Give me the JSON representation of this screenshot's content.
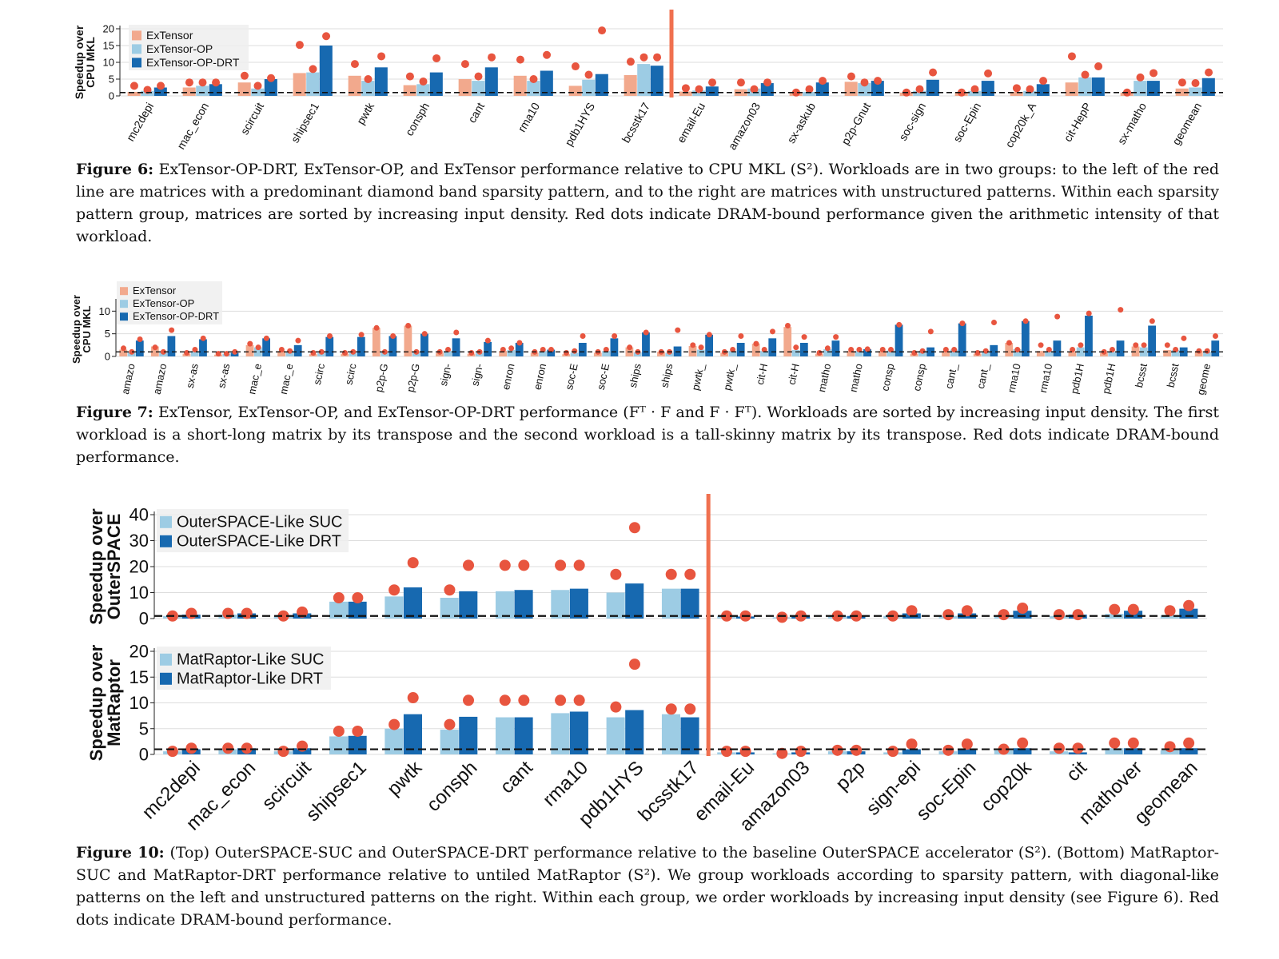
{
  "chart_data": [
    {
      "type": "bar",
      "ylabel": "Speedup over CPU MKL",
      "ylim": [
        0,
        20
      ],
      "yticks": [
        0,
        5,
        10,
        15,
        20
      ],
      "categories": [
        "mc2depi",
        "mac_econ",
        "scircuit",
        "shipsec1",
        "pwtk",
        "consph",
        "cant",
        "rma10",
        "pdb1HYS",
        "bcsstk17",
        "email-Eu",
        "amazon03",
        "sx-askub",
        "p2p-Gnut",
        "soc-sign",
        "soc-Epin",
        "cop20k_A",
        "cit-HepP",
        "sx-matho",
        "geomean"
      ],
      "divider_after": 10,
      "legend_position": "top-left",
      "series": [
        {
          "name": "ExTensor",
          "color": "#f2a98d",
          "values": [
            1.2,
            2.5,
            4,
            6.8,
            6,
            3.2,
            5,
            6,
            3,
            6.2,
            1.3,
            2,
            0.8,
            4.2,
            1,
            1,
            1.2,
            4,
            1,
            2.2
          ]
        },
        {
          "name": "ExTensor-OP",
          "color": "#9dcce4",
          "values": [
            1.5,
            3,
            2.2,
            7,
            4.5,
            3.5,
            4.5,
            4.5,
            4.8,
            9.5,
            1.6,
            2.2,
            1.2,
            3.8,
            1.5,
            1.5,
            1.5,
            5.5,
            4.5,
            2.5
          ]
        },
        {
          "name": "ExTensor-OP-DRT",
          "color": "#1769b0",
          "values": [
            2.5,
            3.5,
            5,
            15,
            8.5,
            7,
            8.5,
            7.5,
            6.5,
            9,
            2.8,
            3.8,
            4,
            4.5,
            4.8,
            4.5,
            3.5,
            5.5,
            4.5,
            5.3
          ]
        }
      ],
      "dram_bound": [
        [
          3,
          1.8,
          3
        ],
        [
          4,
          4,
          4
        ],
        [
          6,
          3,
          5.3
        ],
        [
          15.2,
          8,
          17.8
        ],
        [
          9.5,
          5,
          11.8
        ],
        [
          5.8,
          4.3,
          11.2
        ],
        [
          9.5,
          5.8,
          11.5
        ],
        [
          10.8,
          5,
          12.2
        ],
        [
          8.8,
          6.3,
          19.5
        ],
        [
          10.2,
          11.5,
          11.5
        ],
        [
          2.3,
          2,
          4
        ],
        [
          4,
          2,
          4
        ],
        [
          1,
          2,
          4.5
        ],
        [
          5.8,
          4,
          4.5
        ],
        [
          1,
          2,
          7
        ],
        [
          1,
          2,
          6.7
        ],
        [
          2.3,
          2,
          4.5
        ],
        [
          11.8,
          6.3,
          8.8
        ],
        [
          1,
          5.5,
          6.8
        ],
        [
          4,
          3.8,
          7
        ]
      ]
    },
    {
      "type": "bar",
      "ylabel": "Speedup over CPU MKL",
      "ylim": [
        0,
        12
      ],
      "yticks": [
        0,
        5,
        10
      ],
      "categories": [
        "amazo",
        "amazo",
        "sx-as",
        "sx-as",
        "mac_e",
        "mac_e",
        "scirc",
        "scirc",
        "p2p-G",
        "p2p-G",
        "sign-",
        "sign-",
        "enron",
        "enron",
        "soc-E",
        "soc-E",
        "ships",
        "ships",
        "pwtk_",
        "pwtk_",
        "cit-H",
        "cit-H",
        "matho",
        "matho",
        "consp",
        "consp",
        "cant_",
        "cant_",
        "rma10",
        "rma10",
        "pdb1H",
        "pdb1H",
        "bcsst",
        "bcsst",
        "geome"
      ],
      "legend_position": "top-left",
      "series": [
        {
          "name": "ExTensor",
          "color": "#f2a98d",
          "values": [
            1.5,
            2.2,
            0.6,
            0.4,
            2.5,
            1.2,
            0.5,
            0.6,
            6.3,
            6.8,
            0.8,
            0.6,
            1.2,
            0.8,
            0.5,
            0.8,
            2,
            1,
            2.3,
            0.8,
            2.8,
            6.5,
            0.6,
            1.2,
            1.2,
            0.6,
            1.2,
            0.6,
            3,
            1.2,
            1,
            0.8,
            2.2,
            1.4,
            1.2
          ]
        },
        {
          "name": "ExTensor-OP",
          "color": "#9dcce4",
          "values": [
            0.9,
            0.8,
            1.2,
            0.6,
            2,
            1,
            0.8,
            0.8,
            0.9,
            1,
            1.2,
            0.8,
            1.4,
            1.2,
            0.8,
            1.2,
            0.9,
            0.8,
            1.5,
            1.2,
            1.2,
            1.4,
            1.6,
            1.2,
            1.3,
            1.2,
            1.5,
            1.1,
            1.6,
            1.2,
            2,
            1,
            2,
            1.4,
            1
          ]
        },
        {
          "name": "ExTensor-OP-DRT",
          "color": "#1769b0",
          "values": [
            3.5,
            4.5,
            3.8,
            0.8,
            4,
            2.5,
            4.3,
            4.3,
            4.5,
            5,
            4,
            3.2,
            3,
            1.5,
            3,
            4,
            5.3,
            2.2,
            4.8,
            3,
            4,
            3,
            3.5,
            1.6,
            7,
            2,
            7.3,
            2.5,
            7.8,
            3.5,
            9,
            3.5,
            6.8,
            2,
            3.5
          ]
        }
      ],
      "dram_bound": [
        [
          1.8,
          1,
          3.8
        ],
        [
          2,
          1,
          5.8
        ],
        [
          0.8,
          1.5,
          4
        ],
        [
          0.6,
          0.6,
          1
        ],
        [
          2.8,
          2,
          4
        ],
        [
          1.5,
          1.2,
          3.5
        ],
        [
          0.8,
          1,
          4.5
        ],
        [
          0.8,
          1,
          4.8
        ],
        [
          6.3,
          1,
          4.5
        ],
        [
          6.8,
          1,
          5
        ],
        [
          1,
          1.5,
          5.3
        ],
        [
          0.8,
          1,
          3.5
        ],
        [
          1.5,
          1.8,
          3
        ],
        [
          1,
          1.5,
          1.5
        ],
        [
          0.8,
          1.2,
          4.5
        ],
        [
          1,
          1.5,
          4.5
        ],
        [
          2,
          1,
          5.3
        ],
        [
          1,
          1,
          5.8
        ],
        [
          2.5,
          2,
          4.8
        ],
        [
          1,
          1.5,
          4.5
        ],
        [
          2.8,
          1.5,
          5.5
        ],
        [
          6.8,
          2,
          4.3
        ],
        [
          0.8,
          1.8,
          4.3
        ],
        [
          1.5,
          1.5,
          1.6
        ],
        [
          1.5,
          1.5,
          7
        ],
        [
          0.8,
          1.2,
          5.5
        ],
        [
          1.5,
          1.5,
          7.3
        ],
        [
          0.8,
          1.2,
          7.5
        ],
        [
          3,
          1.5,
          7.8
        ],
        [
          2.5,
          1.5,
          8.8
        ],
        [
          1.5,
          2.5,
          9.5
        ],
        [
          1,
          1.5,
          10.3
        ],
        [
          2.5,
          2.5,
          7.8
        ],
        [
          2.5,
          1.5,
          4
        ],
        [
          1.2,
          1.2,
          4.5
        ]
      ]
    },
    {
      "type": "bar",
      "ylabel": "Speedup over OuterSPACE",
      "ylim": [
        0,
        40
      ],
      "yticks": [
        0,
        10,
        20,
        30,
        40
      ],
      "categories": [
        "mc2depi",
        "mac_econ",
        "scircuit",
        "shipsec1",
        "pwtk",
        "consph",
        "cant",
        "rma10",
        "pdb1HYS",
        "bcsstk17",
        "email-Eu",
        "amazon03",
        "p2p",
        "sign-epi",
        "soc-Epin",
        "cop20k",
        "cit",
        "mathover",
        "geomean"
      ],
      "divider_after": 10,
      "legend_position": "top-left",
      "series": [
        {
          "name": "OuterSPACE-Like SUC",
          "color": "#9dcce4",
          "values": [
            1,
            1.5,
            1,
            6.5,
            8.5,
            8,
            10.5,
            11,
            10,
            11.5,
            1,
            0.5,
            1,
            1,
            1,
            1.2,
            1,
            1.8,
            1.2
          ]
        },
        {
          "name": "OuterSPACE-Like DRT",
          "color": "#1769b0",
          "values": [
            1.5,
            2,
            2,
            6.5,
            12,
            10.5,
            11,
            11.5,
            13.5,
            11.5,
            0.8,
            0.8,
            1,
            2,
            2,
            3,
            1.5,
            3,
            3.8
          ]
        }
      ],
      "dram_bound": [
        [
          1,
          2
        ],
        [
          2,
          2
        ],
        [
          1,
          2.5
        ],
        [
          8,
          8
        ],
        [
          11,
          21.5
        ],
        [
          11,
          20.5
        ],
        [
          20.5,
          20.5
        ],
        [
          20.5,
          20.5
        ],
        [
          17,
          35
        ],
        [
          17,
          17
        ],
        [
          1,
          1
        ],
        [
          0.5,
          1
        ],
        [
          1,
          1
        ],
        [
          1,
          3
        ],
        [
          1.5,
          3
        ],
        [
          1.5,
          4
        ],
        [
          1.5,
          1.5
        ],
        [
          3.5,
          3.5
        ],
        [
          3,
          5
        ]
      ]
    },
    {
      "type": "bar",
      "ylabel": "Speedup over MatRaptor",
      "ylim": [
        0,
        20
      ],
      "yticks": [
        0,
        5,
        10,
        15,
        20
      ],
      "categories": [
        "mc2depi",
        "mac_econ",
        "scircuit",
        "shipsec1",
        "pwtk",
        "consph",
        "cant",
        "rma10",
        "pdb1HYS",
        "bcsstk17",
        "email-Eu",
        "amazon03",
        "p2p",
        "sign-epi",
        "soc-Epin",
        "cop20k",
        "cit",
        "mathover",
        "geomean"
      ],
      "divider_after": 10,
      "legend_position": "top-left",
      "series": [
        {
          "name": "MatRaptor-Like SUC",
          "color": "#9dcce4",
          "values": [
            0.6,
            1,
            0.6,
            3.5,
            5,
            4.8,
            7.2,
            8,
            7.2,
            7.8,
            0.4,
            0.2,
            0.6,
            0.4,
            0.6,
            0.8,
            0.6,
            1.2,
            0.8
          ]
        },
        {
          "name": "MatRaptor-Like DRT",
          "color": "#1769b0",
          "values": [
            1,
            1.2,
            1.2,
            3.6,
            7.8,
            7.3,
            7.2,
            8.3,
            8.6,
            7.2,
            0.4,
            0.4,
            0.6,
            1,
            1,
            1.2,
            0.4,
            1.2,
            1.2
          ]
        }
      ],
      "dram_bound": [
        [
          0.6,
          1.2
        ],
        [
          1.2,
          1.2
        ],
        [
          0.6,
          1.6
        ],
        [
          4.5,
          4.5
        ],
        [
          5.8,
          11
        ],
        [
          5.8,
          10.5
        ],
        [
          10.5,
          10.5
        ],
        [
          10.5,
          10.5
        ],
        [
          9.2,
          17.5
        ],
        [
          8.8,
          8.8
        ],
        [
          0.6,
          0.6
        ],
        [
          0.2,
          0.6
        ],
        [
          0.8,
          0.8
        ],
        [
          0.6,
          2
        ],
        [
          0.8,
          2
        ],
        [
          1,
          2.2
        ],
        [
          1.2,
          1.2
        ],
        [
          2.2,
          2.2
        ],
        [
          1.5,
          2.2
        ]
      ]
    }
  ],
  "captions": {
    "fig6": {
      "label": "Figure 6:",
      "text": "ExTensor-OP-DRT, ExTensor-OP, and ExTensor performance relative to CPU MKL (S²). Workloads are in two groups: to the left of the red line are matrices with a predominant diamond band sparsity pattern, and to the right are matrices with unstructured patterns. Within each sparsity pattern group, matrices are sorted by increasing input density. Red dots indicate DRAM-bound performance given the arithmetic intensity of that workload."
    },
    "fig7": {
      "label": "Figure 7:",
      "text": "ExTensor, ExTensor-OP, and ExTensor-OP-DRT performance (Fᵀ · F and F · Fᵀ). Workloads are sorted by increasing input density. The first workload is a short-long matrix by its transpose and the second workload is a tall-skinny matrix by its transpose. Red dots indicate DRAM-bound performance."
    },
    "fig10": {
      "label": "Figure 10:",
      "text": "(Top) OuterSPACE-SUC and OuterSPACE-DRT performance relative to the baseline OuterSPACE accelerator (S²). (Bottom) MatRaptor-SUC and MatRaptor-DRT performance relative to untiled MatRaptor (S²). We group workloads according to sparsity pattern, with diagonal-like patterns on the left and unstructured patterns on the right. Within each group, we order workloads by increasing input density (see Figure 6). Red dots indicate DRAM-bound performance."
    }
  },
  "colors": {
    "dram_dot": "#e8553f",
    "divider": "#f0704f",
    "grid": "#dddddd"
  }
}
